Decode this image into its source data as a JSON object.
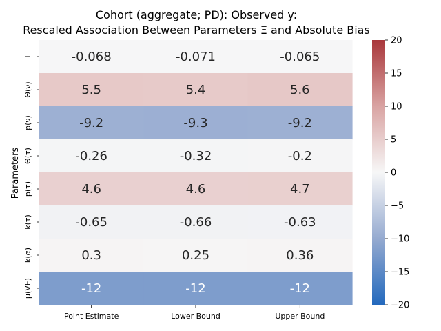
{
  "chart_data": {
    "type": "heatmap",
    "title_line1": "Cohort (aggregate; PD): Observed y:",
    "title_line2": "Rescaled Association Between Parameters Ξ and Absolute Bias",
    "ylabel": "Parameters",
    "xlabel": "",
    "columns": [
      "Point Estimate",
      "Lower Bound",
      "Upper Bound"
    ],
    "rows": [
      "T",
      "Θ(ν)",
      "p(ν)",
      "Θ(τ)",
      "p(τ)",
      "k(τ)",
      "k(α)",
      "μ(VE)"
    ],
    "values": [
      [
        -0.068,
        -0.071,
        -0.065
      ],
      [
        5.5,
        5.4,
        5.6
      ],
      [
        -9.2,
        -9.3,
        -9.2
      ],
      [
        -0.26,
        -0.32,
        -0.2
      ],
      [
        4.6,
        4.6,
        4.7
      ],
      [
        -0.65,
        -0.66,
        -0.63
      ],
      [
        0.3,
        0.25,
        0.36
      ],
      [
        -12,
        -12,
        -12
      ]
    ],
    "labels": [
      [
        "-0.068",
        "-0.071",
        "-0.065"
      ],
      [
        "5.5",
        "5.4",
        "5.6"
      ],
      [
        "-9.2",
        "-9.3",
        "-9.2"
      ],
      [
        "-0.26",
        "-0.32",
        "-0.2"
      ],
      [
        "4.6",
        "4.6",
        "4.7"
      ],
      [
        "-0.65",
        "-0.66",
        "-0.63"
      ],
      [
        "0.3",
        "0.25",
        "0.36"
      ],
      [
        "-12",
        "-12",
        "-12"
      ]
    ],
    "colorbar": {
      "range": [
        -20,
        20
      ],
      "ticks": [
        20,
        15,
        10,
        5,
        0,
        -5,
        -10,
        -15,
        -20
      ],
      "tick_labels": [
        "20",
        "15",
        "10",
        "5",
        "0",
        "−5",
        "−10",
        "−15",
        "−20"
      ],
      "colormap": "vlag",
      "low_color": "#2369bd",
      "mid_color": "#f7f7f7",
      "high_color": "#a9373b"
    }
  }
}
